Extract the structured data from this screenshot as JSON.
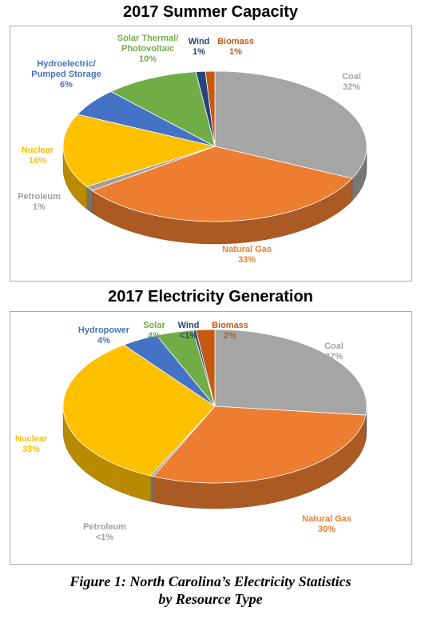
{
  "chart_data": [
    {
      "type": "pie",
      "title": "2017 Summer Capacity",
      "slices": [
        {
          "name": "Coal",
          "value": 32,
          "display": "32%",
          "color": "#a5a5a5"
        },
        {
          "name": "Natural Gas",
          "value": 33,
          "display": "33%",
          "color": "#ed7d31"
        },
        {
          "name": "Petroleum",
          "value": 1,
          "display": "1%",
          "color": "#9e9e9e"
        },
        {
          "name": "Nuclear",
          "value": 16,
          "display": "16%",
          "color": "#ffc000"
        },
        {
          "name": "Hydroelectric/ Pumped Storage",
          "value": 6,
          "display": "6%",
          "color": "#4472c4"
        },
        {
          "name": "Solar Thermal/ Photovoltaic",
          "value": 10,
          "display": "10%",
          "color": "#70ad47"
        },
        {
          "name": "Wind",
          "value": 1,
          "display": "1%",
          "color": "#264478"
        },
        {
          "name": "Biomass",
          "value": 1,
          "display": "1%",
          "color": "#c55a11"
        }
      ]
    },
    {
      "type": "pie",
      "title": "2017 Electricity Generation",
      "slices": [
        {
          "name": "Coal",
          "value": 27,
          "display": "27%",
          "color": "#a5a5a5"
        },
        {
          "name": "Natural Gas",
          "value": 30,
          "display": "30%",
          "color": "#ed7d31"
        },
        {
          "name": "Petroleum",
          "value": 0.3,
          "display": "<1%",
          "color": "#9e9e9e"
        },
        {
          "name": "Nuclear",
          "value": 33,
          "display": "33%",
          "color": "#ffc000"
        },
        {
          "name": "Hydropower",
          "value": 4,
          "display": "4%",
          "color": "#4472c4"
        },
        {
          "name": "Solar",
          "value": 4,
          "display": "4%",
          "color": "#70ad47"
        },
        {
          "name": "Wind",
          "value": 0.3,
          "display": "<1%",
          "color": "#264478"
        },
        {
          "name": "Biomass",
          "value": 2,
          "display": "2%",
          "color": "#c55a11"
        }
      ]
    }
  ],
  "caption": {
    "line1": "Figure 1: North Carolina’s Electricity Statistics",
    "line2": "by Resource Type"
  },
  "label_colors": {
    "Coal": "#a5a5a5",
    "Natural Gas": "#ed7d31",
    "Petroleum": "#a0a0a0",
    "Nuclear": "#ffc000",
    "Hydro": "#4472c4",
    "Solar": "#70ad47",
    "Wind": "#264478",
    "Biomass": "#c55a11"
  }
}
